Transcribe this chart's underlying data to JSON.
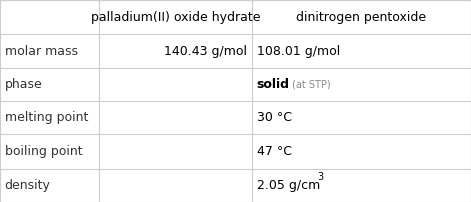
{
  "col_headers": [
    "",
    "palladium(II) oxide hydrate",
    "dinitrogen pentoxide"
  ],
  "row_labels": [
    "molar mass",
    "phase",
    "melting point",
    "boiling point",
    "density"
  ],
  "col1_values": [
    "140.43 g/mol",
    "",
    "",
    "",
    ""
  ],
  "col2_values": [
    "108.01 g/mol",
    "solid  (at STP)",
    "30 °C",
    "47 °C",
    "2.05 g/cm³"
  ],
  "col2_special": [
    null,
    "(at STP)",
    null,
    null,
    null
  ],
  "background_color": "#ffffff",
  "header_bg": "#ffffff",
  "grid_color": "#cccccc",
  "text_color": "#000000",
  "label_color": "#333333"
}
